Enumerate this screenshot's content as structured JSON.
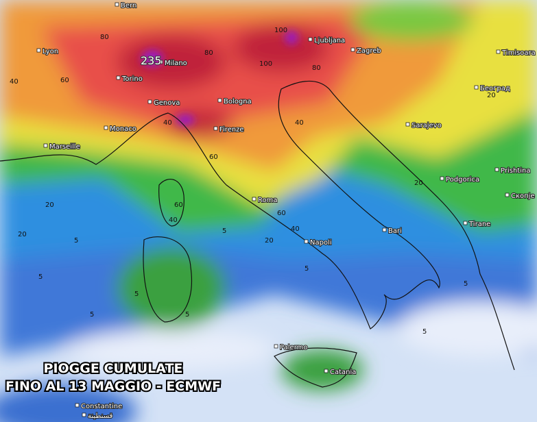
{
  "title": {
    "line1": "PIOGGE CUMULATE",
    "line2": "FINO AL 13 MAGGIO - ECMWF"
  },
  "cities": [
    "Bern",
    "Lyon",
    "Torino",
    "Milano",
    "Genova",
    "Bologna",
    "Monaco",
    "Marseille",
    "Firenze",
    "Roma",
    "Napoli",
    "Bari",
    "Palermo",
    "Catania",
    "Ljubljana",
    "Zagreb",
    "Timisoara",
    "Београд",
    "Sarajevo",
    "Podgorica",
    "Prishtina",
    "Скопје",
    "Tirane",
    "Constantine",
    "قسنطينة"
  ],
  "contour_labels": [
    235,
    100,
    100,
    80,
    80,
    80,
    60,
    60,
    60,
    60,
    40,
    40,
    40,
    40,
    40,
    20,
    20,
    20,
    20,
    20,
    5,
    5,
    5,
    5,
    5,
    5,
    5,
    5,
    5
  ]
}
